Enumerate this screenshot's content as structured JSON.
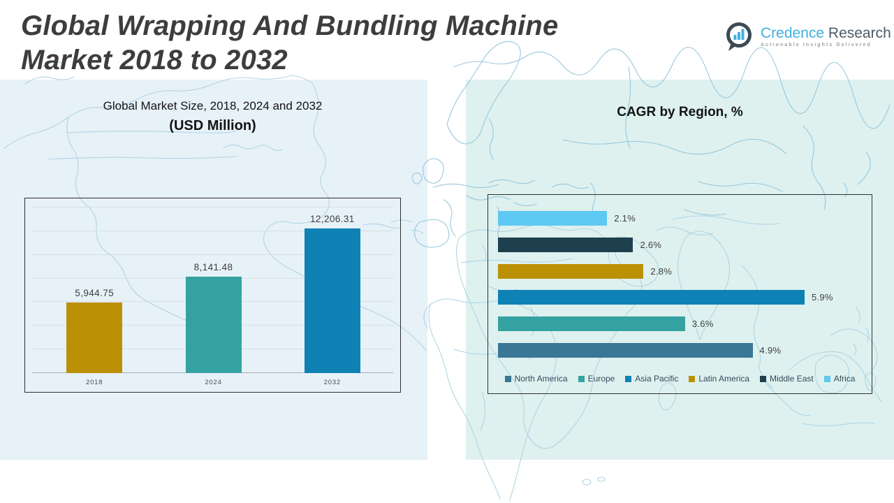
{
  "header": {
    "title_line1": "Global Wrapping And Bundling Machine",
    "title_line2": "Market 2018 to 2032"
  },
  "logo": {
    "brand_primary": "Credence",
    "brand_secondary": "Research",
    "tagline": "Actionable Insights Delivered",
    "icon": "bar-chart-speech-bubble-icon"
  },
  "colors": {
    "gold": "#bc9005",
    "teal": "#35a2a2",
    "blue": "#0e82b4",
    "light_blue": "#5ec9f2",
    "navy": "#1e3f4e",
    "steel": "#3a7795",
    "panel_left": "#e7f1f8",
    "panel_right": "#def1ef",
    "title_text": "#3d3d3d",
    "heading_text": "#141414",
    "grid_line": "#d9dde2",
    "axis_line": "#a7adb3",
    "box_border": "#2f2f2f",
    "map_stroke": "#aed3e2",
    "map_accent": "#8fc3da",
    "brand_blue": "#41b0de",
    "brand_dark": "#4d5b66",
    "brand_gray": "#97a2a9",
    "label_text": "#3f3f3f",
    "legend_text": "#2f4b59"
  },
  "chart_data": [
    {
      "type": "bar",
      "orientation": "vertical",
      "title": "Global Market Size, 2018, 2024 and 2032",
      "subtitle": "(USD Million)",
      "categories": [
        "2018",
        "2024",
        "2032"
      ],
      "values": [
        5944.75,
        8141.48,
        12206.31
      ],
      "value_labels": [
        "5,944.75",
        "8,141.48",
        "12,206.31"
      ],
      "bar_colors": [
        "#bc9005",
        "#35a2a2",
        "#0e82b4"
      ],
      "ylim": [
        0,
        14000
      ],
      "ytick": 2000,
      "grid": true,
      "legend": "none"
    },
    {
      "type": "bar",
      "orientation": "horizontal",
      "title": "CAGR by Region, %",
      "categories": [
        "Africa",
        "Middle East",
        "Latin America",
        "Asia Pacific",
        "Europe",
        "North America"
      ],
      "values": [
        2.1,
        2.6,
        2.8,
        5.9,
        3.6,
        4.9
      ],
      "value_labels": [
        "2.1%",
        "2.6%",
        "2.8%",
        "5.9%",
        "3.6%",
        "4.9%"
      ],
      "bar_colors": [
        "#5ec9f2",
        "#1e3f4e",
        "#bc9005",
        "#0e82b4",
        "#35a2a2",
        "#3a7795"
      ],
      "xlim": [
        0,
        6.6
      ],
      "grid": false,
      "legend": {
        "position": "bottom",
        "items": [
          "North America",
          "Europe",
          "Asia Pacific",
          "Latin America",
          "Middle East",
          "Africa"
        ],
        "colors": [
          "#3a7795",
          "#35a2a2",
          "#0e82b4",
          "#bc9005",
          "#1e3f4e",
          "#5ec9f2"
        ]
      }
    }
  ]
}
